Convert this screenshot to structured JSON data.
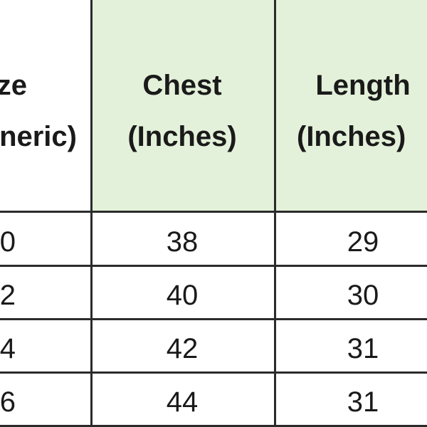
{
  "table": {
    "headers": [
      {
        "line1": "ze",
        "line2": "neric)"
      },
      {
        "line1": "Chest",
        "line2": "(Inches)"
      },
      {
        "line1": "Length",
        "line2": "(Inches)"
      }
    ],
    "rows": [
      [
        "0",
        "38",
        "29"
      ],
      [
        "2",
        "40",
        "30"
      ],
      [
        "4",
        "42",
        "31"
      ],
      [
        "6",
        "44",
        "31"
      ]
    ],
    "header_color": "#e4f1da"
  }
}
